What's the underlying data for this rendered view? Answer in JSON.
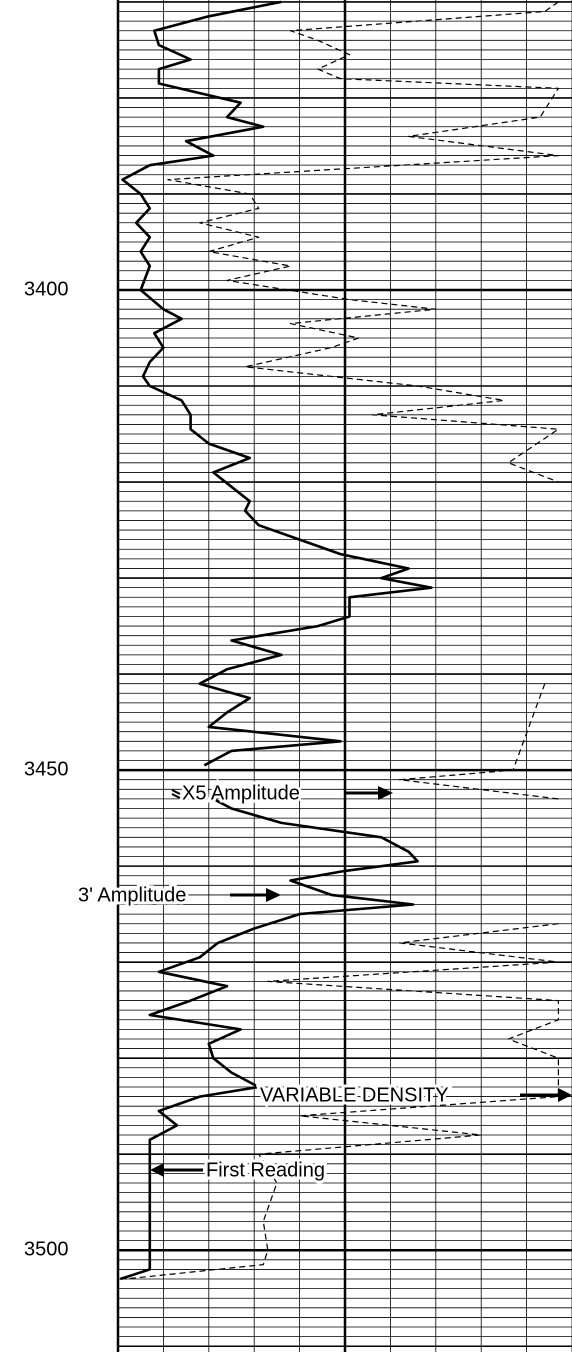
{
  "chart_data": {
    "type": "well-log",
    "ylim": [
      3369.8,
      3510.6
    ],
    "yticks": [
      3400,
      3450,
      3500
    ],
    "xlim": [
      0,
      10
    ],
    "xticks": [
      0,
      1,
      2,
      3,
      4,
      5,
      6,
      7,
      8,
      9,
      10
    ],
    "grid": true,
    "series": [
      {
        "name": "3' Amplitude",
        "color": "#000000",
        "style": "solid",
        "x": [
          3370,
          3371.5,
          3373,
          3374.5,
          3376,
          3377,
          3378.5,
          3379.5,
          3380.5,
          3382,
          3383,
          3384.5,
          3386,
          3387,
          3388.5,
          3390,
          3391.5,
          3393,
          3394.5,
          3396,
          3397.5,
          3400,
          3402,
          3403,
          3404.5,
          3406,
          3407.5,
          3409,
          3410,
          3411.5,
          3413,
          3414.5,
          3416,
          3417.5,
          3419,
          3420.5,
          3422,
          3423,
          3424.5,
          3426,
          3427.5,
          3429,
          3430,
          3431,
          3432,
          3434,
          3435,
          3436.5,
          3438,
          3439.5,
          3441,
          3442.5,
          3444,
          3445.5,
          3447,
          3448,
          3449.5,
          3451,
          3452.5,
          3454,
          3455.5,
          3457,
          3458.5,
          3459.5,
          3460.5,
          3461.5,
          3463,
          3464,
          3465,
          3466.5,
          3468,
          3469.5,
          3471,
          3472.5,
          3474,
          3475.5,
          3477,
          3478.5,
          3480,
          3481.5,
          3483,
          3484,
          3485.5,
          3487,
          3488.5,
          3490,
          3495,
          3500,
          3502,
          3503
        ],
        "values": [
          3.6,
          2.0,
          0.8,
          0.9,
          1.6,
          0.9,
          0.9,
          1.8,
          2.7,
          2.4,
          3.2,
          1.5,
          2.1,
          0.7,
          0.1,
          0.5,
          0.7,
          0.4,
          0.7,
          0.5,
          0.7,
          0.5,
          1.0,
          1.4,
          0.8,
          1.0,
          0.7,
          0.55,
          0.7,
          1.4,
          1.6,
          1.6,
          2.0,
          2.9,
          2.1,
          2.5,
          2.9,
          2.8,
          3.1,
          4.0,
          4.9,
          6.4,
          5.8,
          6.9,
          5.1,
          5.1,
          4.4,
          2.5,
          3.6,
          2.4,
          1.8,
          2.9,
          2.4,
          2.0,
          4.9,
          2.5,
          1.9,
          null,
          1.9,
          2.5,
          3.6,
          5.8,
          6.4,
          6.6,
          5.0,
          3.8,
          4.7,
          6.5,
          4.0,
          3.0,
          2.2,
          1.8,
          0.9,
          2.4,
          1.6,
          0.7,
          2.7,
          2.0,
          2.1,
          2.5,
          3.1,
          1.8,
          0.9,
          1.3,
          0.7,
          0.7,
          0.7,
          0.7,
          0.7,
          0.05
        ]
      },
      {
        "name": "X5 Amplitude",
        "color": "#000000",
        "style": "dashed",
        "x": [
          3370,
          3371,
          3373,
          3374,
          3375.5,
          3377,
          3378,
          3379,
          3382,
          3384,
          3386,
          3388.5,
          3390,
          3391.5,
          3393,
          3394.5,
          3396,
          3397.5,
          3399,
          3401,
          3402,
          3403.5,
          3405,
          3406,
          3408,
          3410,
          3411.5,
          3413,
          3414.5,
          3418,
          3420,
          3430,
          3441,
          3450,
          3451,
          3453,
          3460,
          3466,
          3468,
          3470,
          3472,
          3474,
          3476,
          3478,
          3480,
          3484,
          3486,
          3488,
          3490,
          3493,
          3497,
          3500,
          3501.5,
          3503
        ],
        "values": [
          9.7,
          9.4,
          3.8,
          4.4,
          5.1,
          4.4,
          4.9,
          9.7,
          9.3,
          6.4,
          9.7,
          1.1,
          2.9,
          3.1,
          1.8,
          3.1,
          2.0,
          3.8,
          2.4,
          5.1,
          7.0,
          3.8,
          5.3,
          4.7,
          2.8,
          6.6,
          8.5,
          5.6,
          9.7,
          8.6,
          9.7,
          null,
          9.4,
          8.7,
          6.2,
          9.7,
          null,
          9.7,
          6.2,
          9.7,
          3.3,
          9.7,
          9.7,
          8.6,
          9.7,
          9.7,
          4.0,
          8.0,
          3.1,
          3.5,
          3.2,
          3.3,
          3.2,
          0.15
        ]
      }
    ],
    "annotations": [
      "X5 Amplitude",
      "3' Amplitude",
      "VARIABLE DENSITY",
      "First Reading"
    ]
  }
}
